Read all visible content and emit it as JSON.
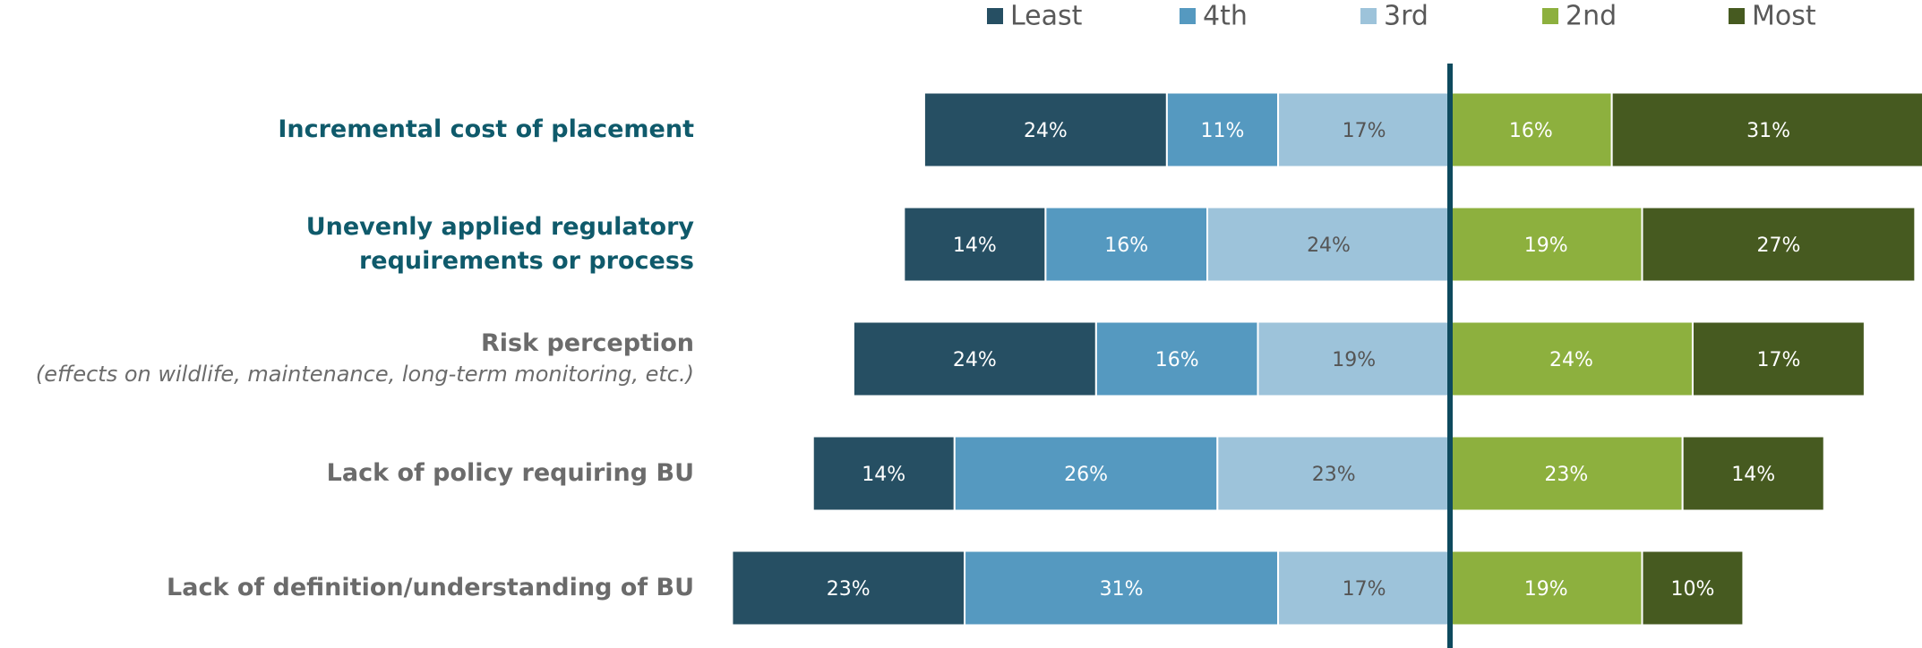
{
  "chart_data": {
    "type": "diverging_bar",
    "categories": [
      "Incremental cost of placement",
      "Unevenly applied regulatory\nrequirements or process",
      "Risk perception\n(effects on wildlife, maintenance, long-term monitoring, etc.)",
      "Lack of policy requiring BU",
      "Lack of definition/understanding of BU"
    ],
    "category_colors": [
      "#0f5a6b",
      "#0f5a6b",
      "#6b6b6b",
      "#6b6b6b",
      "#6b6b6b"
    ],
    "series": [
      {
        "name": "Least",
        "color": "#264f63",
        "values": [
          24,
          14,
          24,
          14,
          23
        ],
        "value_labels": [
          "24%",
          "14%",
          "24%",
          "14%",
          "23%"
        ]
      },
      {
        "name": "4th",
        "color": "#5599c0",
        "values": [
          11,
          16,
          16,
          26,
          31
        ],
        "value_labels": [
          "11%",
          "16%",
          "16%",
          "26%",
          "31%"
        ]
      },
      {
        "name": "3rd",
        "color": "#9dc3da",
        "values": [
          17,
          24,
          19,
          23,
          17
        ],
        "value_labels": [
          "17%",
          "24%",
          "19%",
          "23%",
          "17%"
        ]
      },
      {
        "name": "2nd",
        "color": "#8db03e",
        "values": [
          16,
          19,
          24,
          23,
          19
        ],
        "value_labels": [
          "16%",
          "19%",
          "24%",
          "23%",
          "19%"
        ]
      },
      {
        "name": "Most",
        "color": "#465a20",
        "values": [
          31,
          27,
          17,
          14,
          10
        ],
        "value_labels": [
          "31%",
          "27%",
          "17%",
          "14%",
          "10%"
        ]
      }
    ],
    "legend": "top"
  }
}
